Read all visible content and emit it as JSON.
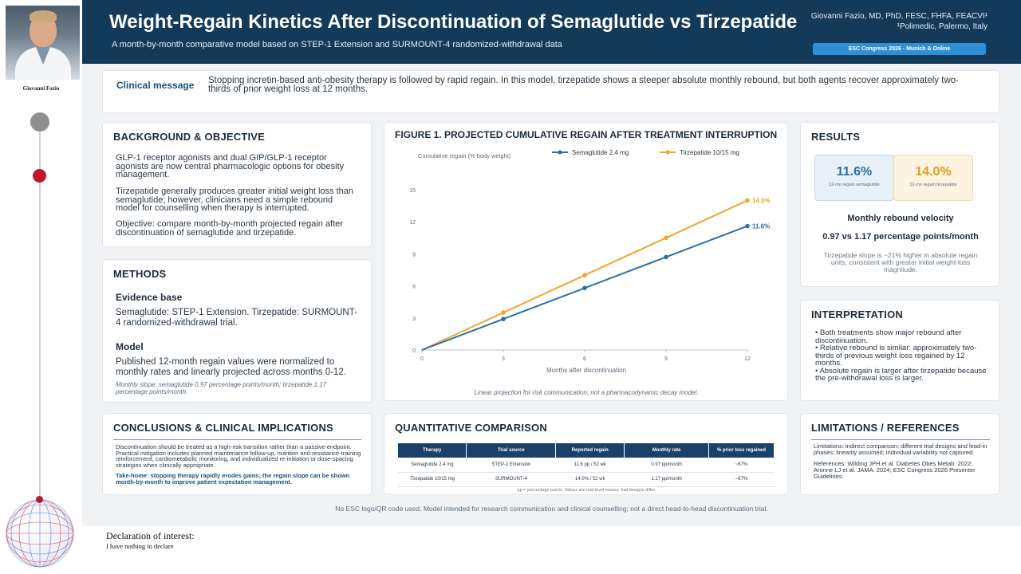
{
  "author": {
    "photo_caption": "Giovanni Fazio",
    "name_line": "Giovanni Fazio, MD, PhD, FESC, FHFA, FEACVI¹",
    "affiliation": "¹Polimedic, Palermo, Italy"
  },
  "header": {
    "title": "Weight-Regain Kinetics After Discontinuation of Semaglutide vs Tirzepatide",
    "subtitle": "A month-by-month comparative model based on STEP-1 Extension and SURMOUNT-4 randomized-withdrawal data",
    "congress": "ESC Congress 2026 - Munich & Online"
  },
  "clinical": {
    "label": "Clinical message",
    "text": "Stopping incretin-based anti-obesity therapy is followed by rapid regain. In this model, tirzepatide shows a steeper absolute monthly rebound, but both agents recover approximately two-thirds of prior weight loss at 12 months."
  },
  "background": {
    "title": "BACKGROUND & OBJECTIVE",
    "p1": "GLP-1 receptor agonists and dual GIP/GLP-1 receptor agonists are now central pharmacologic options for obesity management.",
    "p2": "Tirzepatide generally produces greater initial weight loss than semaglutide; however, clinicians need a simple rebound model for counselling when therapy is interrupted.",
    "p3": "Objective: compare month-by-month projected regain after discontinuation of semaglutide and tirzepatide."
  },
  "methods": {
    "title": "METHODS",
    "evidence_head": "Evidence base",
    "evidence_text": "Semaglutide: STEP-1 Extension. Tirzepatide: SURMOUNT-4 randomized-withdrawal trial.",
    "model_head": "Model",
    "model_text": "Published 12-month regain values were normalized to monthly rates and linearly projected across months 0-12.",
    "slope_note": "Monthly slope: semaglutide 0.97 percentage points/month; tirzepatide 1.17 percentage points/month."
  },
  "conclusions": {
    "title": "CONCLUSIONS & CLINICAL IMPLICATIONS",
    "text": "Discontinuation should be treated as a high-risk transition rather than a passive endpoint. Practical mitigation includes planned maintenance follow-up, nutrition and resistance-training reinforcement, cardiometabolic monitoring, and individualized re-initiation or dose-spacing strategies when clinically appropriate.",
    "takehome": "Take-home: stopping therapy rapidly erodes gains; the regain slope can be shown month-by-month to improve patient expectation management."
  },
  "figure": {
    "title": "FIGURE 1. PROJECTED CUMULATIVE REGAIN AFTER TREATMENT INTERRUPTION",
    "caption": "Linear projection for risk communication; not a pharmacodynamic decay model."
  },
  "chart_data": {
    "type": "line",
    "x": [
      0,
      3,
      6,
      9,
      12
    ],
    "series": [
      {
        "name": "Semaglutide 2.4 mg",
        "color": "#2b6fa8",
        "values": [
          0,
          2.9,
          5.8,
          8.7,
          11.6
        ],
        "end_label": "11.6%"
      },
      {
        "name": "Tirzepatide 10/15 mg",
        "color": "#f0a52c",
        "values": [
          0,
          3.5,
          7.0,
          10.5,
          14.0
        ],
        "end_label": "14.0%"
      }
    ],
    "xlabel": "Months after discontinuation",
    "ylabel": "Cumulative regain (% body weight)",
    "xticks": [
      0,
      3,
      6,
      9,
      12
    ],
    "yticks": [
      0,
      3,
      6,
      9,
      12,
      15
    ],
    "xlim": [
      0,
      12
    ],
    "ylim": [
      0,
      15
    ],
    "grid": false,
    "legend": "top"
  },
  "results": {
    "title": "RESULTS",
    "sema_value": "11.6%",
    "sema_label": "12-mo regain semaglutide",
    "tirz_value": "14.0%",
    "tirz_label": "12-mo regain tirzepatide",
    "velocity_title": "Monthly rebound velocity",
    "velocity_value": "0.97 vs 1.17 percentage points/month",
    "velocity_note": "Tirzepatide slope is ~21% higher in absolute regain units, consistent with greater initial weight-loss magnitude."
  },
  "interpretation": {
    "title": "INTERPRETATION",
    "items": [
      "• Both treatments show major rebound after discontinuation.",
      "• Relative rebound is similar: approximately two-thirds of previous weight loss regained by 12 months.",
      "• Absolute regain is larger after tirzepatide because the pre-withdrawal loss is larger."
    ]
  },
  "quantitative": {
    "title": "QUANTITATIVE COMPARISON",
    "headers": [
      "Therapy",
      "Trial source",
      "Reported regain",
      "Monthly rate",
      "% prior loss regained"
    ],
    "rows": [
      [
        "Semaglutide 2.4 mg",
        "STEP-1 Extension",
        "11.6 pp / 52 wk",
        "0.97 pp/month",
        "~67%"
      ],
      [
        "Tirzepatide 10/15 mg",
        "SURMOUNT-4",
        "14.0% / 52 wk",
        "1.17 pp/month",
        "~67%"
      ]
    ],
    "note": "pp = percentage points. Values are trial-level means; trial designs differ."
  },
  "limitations": {
    "title": "LIMITATIONS / REFERENCES",
    "text": "Limitations: indirect comparison; different trial designs and lead-in phases; linearity assumed; individual variability not captured.",
    "refs": "References: Wilding JPH et al. Diabetes Obes Metab. 2022; Aronne LJ et al. JAMA. 2024; ESC Congress 2026 Presenter Guidelines."
  },
  "footnote": "No ESC logo/QR code used. Model intended for research communication and clinical counselling; not a direct head-to-head discontinuation trial.",
  "declaration": {
    "title": "Declaration of interest:",
    "text": "I have nothing to declare"
  }
}
